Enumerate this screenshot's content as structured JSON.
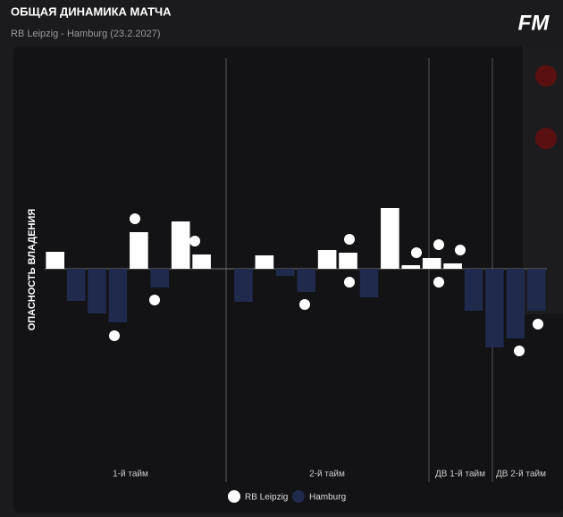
{
  "chart_data": {
    "type": "bar",
    "title": "ОБЩАЯ ДИНАМИКА МАТЧА",
    "subtitle": "RB Leipzig - Hamburg (23.2.2027)",
    "logo": "FM",
    "y_label": "ОПАСНОСТЬ ВЛАДЕНИЯ",
    "categories": [
      null,
      null,
      null,
      null,
      null,
      null,
      null,
      null,
      null,
      null,
      null,
      null,
      null,
      null,
      null,
      null,
      null,
      null,
      null,
      null,
      null,
      null,
      null,
      null
    ],
    "periods": [
      "1-й тайм",
      "2-й тайм",
      "ДВ 1-й тайм",
      "ДВ 2-й тайм"
    ],
    "ylim": [
      -100,
      100
    ],
    "series": [
      {
        "name": "RB Leipzig",
        "color": "#ffffff",
        "values": [
          19,
          null,
          null,
          null,
          41,
          null,
          53,
          16,
          null,
          null,
          15,
          null,
          null,
          21,
          18,
          null,
          68,
          4,
          12,
          6,
          null,
          null,
          null,
          null
        ]
      },
      {
        "name": "Hamburg",
        "color": "#1f2a4d",
        "values": [
          null,
          -36,
          -50,
          -60,
          null,
          -21,
          null,
          null,
          null,
          -37,
          null,
          -8,
          -26,
          null,
          null,
          -32,
          null,
          null,
          null,
          null,
          -47,
          -88,
          -78,
          -47
        ]
      }
    ]
  }
}
